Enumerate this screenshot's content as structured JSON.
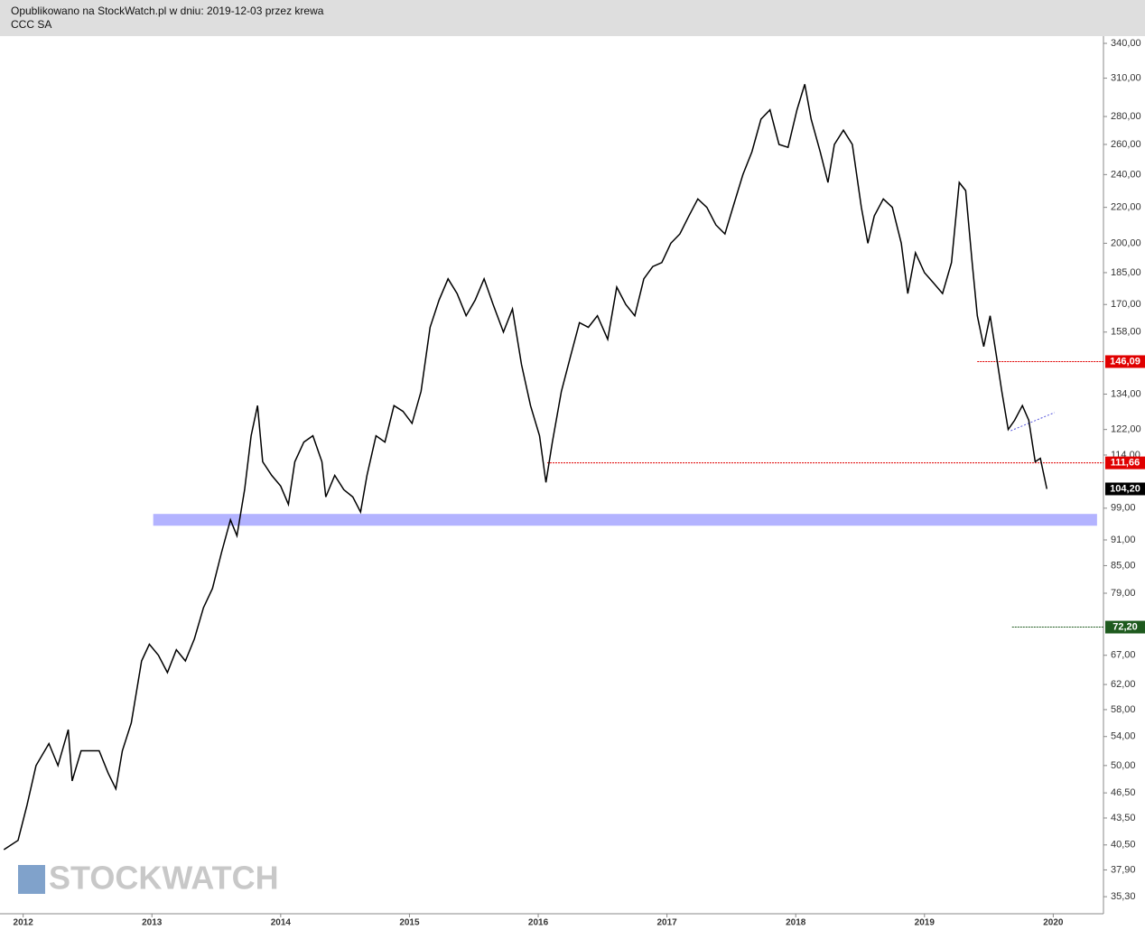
{
  "chart_data": {
    "type": "line",
    "title": "Opublikowano na StockWatch.pl w dniu: 2019-12-03 przez krewa",
    "subtitle": "CCC SA",
    "watermark": "STOCKWATCH",
    "log_scale": true,
    "x": [
      2011.85,
      2011.96,
      2012.03,
      2012.1,
      2012.2,
      2012.27,
      2012.35,
      2012.38,
      2012.45,
      2012.52,
      2012.59,
      2012.66,
      2012.72,
      2012.77,
      2012.84,
      2012.92,
      2012.98,
      2013.05,
      2013.12,
      2013.19,
      2013.26,
      2013.33,
      2013.4,
      2013.47,
      2013.54,
      2013.61,
      2013.66,
      2013.72,
      2013.77,
      2013.82,
      2013.86,
      2013.93,
      2014.0,
      2014.06,
      2014.11,
      2014.18,
      2014.25,
      2014.32,
      2014.35,
      2014.42,
      2014.49,
      2014.56,
      2014.62,
      2014.67,
      2014.74,
      2014.81,
      2014.88,
      2014.95,
      2015.02,
      2015.09,
      2015.16,
      2015.23,
      2015.3,
      2015.37,
      2015.44,
      2015.51,
      2015.58,
      2015.65,
      2015.73,
      2015.8,
      2015.87,
      2015.94,
      2016.01,
      2016.06,
      2016.11,
      2016.18,
      2016.25,
      2016.32,
      2016.39,
      2016.46,
      2016.54,
      2016.61,
      2016.68,
      2016.75,
      2016.82,
      2016.89,
      2016.96,
      2017.03,
      2017.1,
      2017.17,
      2017.24,
      2017.31,
      2017.38,
      2017.45,
      2017.52,
      2017.59,
      2017.66,
      2017.73,
      2017.8,
      2017.87,
      2017.94,
      2018.01,
      2018.07,
      2018.12,
      2018.19,
      2018.25,
      2018.3,
      2018.37,
      2018.44,
      2018.51,
      2018.56,
      2018.61,
      2018.68,
      2018.75,
      2018.82,
      2018.87,
      2018.93,
      2019.0,
      2019.07,
      2019.14,
      2019.21,
      2019.27,
      2019.32,
      2019.37,
      2019.41,
      2019.46,
      2019.51,
      2019.56,
      2019.6,
      2019.65,
      2019.7,
      2019.76,
      2019.81,
      2019.86,
      2019.9,
      2019.95
    ],
    "series": [
      {
        "color": "#000000",
        "values": [
          40,
          41,
          45,
          50,
          53,
          50,
          55,
          48,
          52,
          52,
          52,
          49,
          47,
          52,
          56,
          66,
          69,
          67,
          64,
          68,
          66,
          70,
          76,
          80,
          88,
          96,
          92,
          104,
          120,
          130,
          112,
          108,
          105,
          100,
          112,
          118,
          120,
          112,
          102,
          108,
          104,
          102,
          98,
          108,
          120,
          118,
          130,
          128,
          124,
          135,
          160,
          172,
          182,
          175,
          165,
          172,
          182,
          170,
          158,
          168,
          145,
          130,
          120,
          106,
          118,
          135,
          148,
          162,
          160,
          165,
          155,
          178,
          170,
          165,
          182,
          188,
          190,
          200,
          205,
          215,
          225,
          220,
          210,
          205,
          222,
          240,
          255,
          278,
          285,
          260,
          258,
          285,
          305,
          278,
          255,
          235,
          260,
          270,
          260,
          220,
          200,
          215,
          225,
          220,
          200,
          175,
          195,
          185,
          180,
          175,
          190,
          235,
          230,
          190,
          165,
          152,
          165,
          148,
          135,
          122,
          125,
          130,
          125,
          112,
          113,
          104.2
        ]
      }
    ],
    "xlim": [
      2011.82,
      2020.39
    ],
    "ylim": [
      33.9,
      346.6
    ],
    "xticks": [
      2012,
      2013,
      2014,
      2015,
      2016,
      2017,
      2018,
      2019,
      2020
    ],
    "yticks": [
      {
        "value": 340,
        "label": "340,00"
      },
      {
        "value": 310,
        "label": "310,00"
      },
      {
        "value": 280,
        "label": "280,00"
      },
      {
        "value": 260,
        "label": "260,00"
      },
      {
        "value": 240,
        "label": "240,00"
      },
      {
        "value": 220,
        "label": "220,00"
      },
      {
        "value": 200,
        "label": "200,00"
      },
      {
        "value": 185,
        "label": "185,00"
      },
      {
        "value": 170,
        "label": "170,00"
      },
      {
        "value": 158,
        "label": "158,00"
      },
      {
        "value": 134,
        "label": "134,00"
      },
      {
        "value": 122,
        "label": "122,00"
      },
      {
        "value": 114,
        "label": "114,00"
      },
      {
        "value": 99,
        "label": "99,00"
      },
      {
        "value": 91,
        "label": "91,00"
      },
      {
        "value": 85,
        "label": "85,00"
      },
      {
        "value": 79,
        "label": "79,00"
      },
      {
        "value": 67,
        "label": "67,00"
      },
      {
        "value": 62,
        "label": "62,00"
      },
      {
        "value": 58,
        "label": "58,00"
      },
      {
        "value": 54,
        "label": "54,00"
      },
      {
        "value": 50,
        "label": "50,00"
      },
      {
        "value": 46.5,
        "label": "46,50"
      },
      {
        "value": 43.5,
        "label": "43,50"
      },
      {
        "value": 40.5,
        "label": "40,50"
      },
      {
        "value": 37.9,
        "label": "37,90"
      },
      {
        "value": 35.3,
        "label": "35,30"
      }
    ],
    "levels": [
      {
        "value": 146.09,
        "label": "146,09",
        "color": "#e00000",
        "from": 2019.41
      },
      {
        "value": 111.66,
        "label": "111,66",
        "color": "#e00000",
        "from": 2016.07
      },
      {
        "value": 72.2,
        "label": "72,20",
        "color": "#1e5a1e",
        "from": 2019.68
      },
      {
        "value": 104.2,
        "label": "104,20",
        "color": "#000000"
      }
    ],
    "band": {
      "ylow": 94.5,
      "yhigh": 97.5,
      "x": [
        2013.01,
        2020.34
      ],
      "color": "#b3b3ff"
    },
    "trend": {
      "x": [
        2019.67,
        2020.01
      ],
      "y": [
        121.6,
        127.6
      ],
      "color": "#5555dd"
    }
  }
}
